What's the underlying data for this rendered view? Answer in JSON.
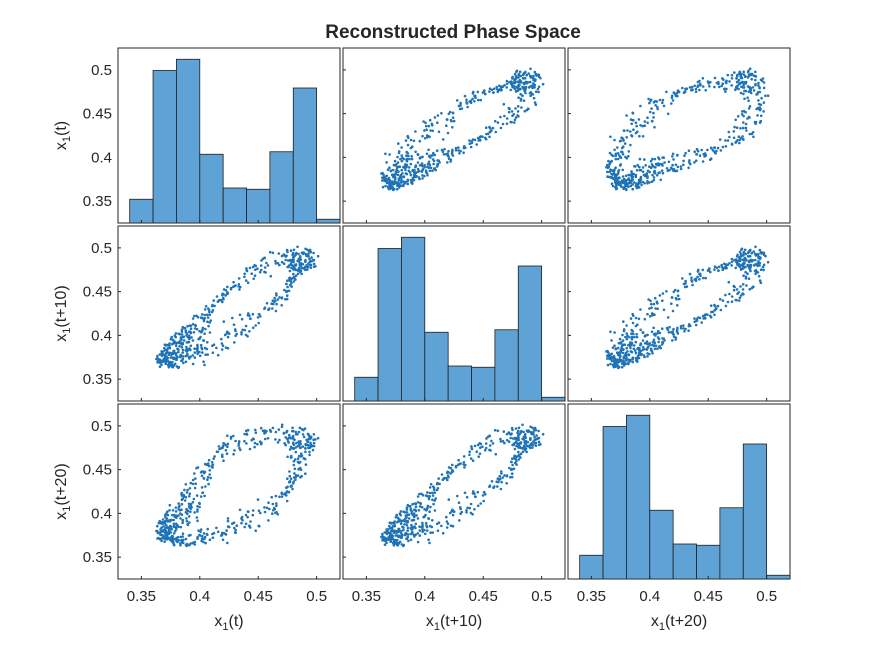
{
  "chart_data": {
    "type": "scatter-matrix",
    "title": "Reconstructed Phase Space",
    "variables": [
      {
        "base": "x",
        "sub": "1",
        "arg": "(t)"
      },
      {
        "base": "x",
        "sub": "1",
        "arg": "(t+10)"
      },
      {
        "base": "x",
        "sub": "1",
        "arg": "(t+20)"
      }
    ],
    "xlim": [
      0.33,
      0.52
    ],
    "ylim": [
      0.325,
      0.525
    ],
    "x_ticks": [
      "0.35",
      "0.4",
      "0.45",
      "0.5"
    ],
    "y_ticks": [
      "0.35",
      "0.4",
      "0.45",
      "0.5"
    ],
    "grid": false,
    "bar_color": "#5fa2d5",
    "marker_color": "#1f73b6",
    "histogram": {
      "bin_edges": [
        0.34,
        0.36,
        0.38,
        0.4,
        0.42,
        0.44,
        0.46,
        0.48,
        0.5,
        0.52
      ],
      "diagonal": [
        {
          "variable": "x1(t)",
          "counts": [
            19,
            122,
            131,
            55,
            28,
            27,
            57,
            108,
            3
          ]
        },
        {
          "variable": "x1(t+10)",
          "counts": [
            19,
            122,
            131,
            55,
            28,
            27,
            57,
            108,
            3
          ]
        },
        {
          "variable": "x1(t+20)",
          "counts": [
            19,
            122,
            131,
            55,
            28,
            27,
            57,
            108,
            3
          ]
        }
      ],
      "count_max": 140
    },
    "scatter_panels": [
      {
        "row": 1,
        "col": 2,
        "x": "x1(t+10)",
        "y": "x1(t)"
      },
      {
        "row": 1,
        "col": 3,
        "x": "x1(t+20)",
        "y": "x1(t)"
      },
      {
        "row": 2,
        "col": 1,
        "x": "x1(t)",
        "y": "x1(t+10)"
      },
      {
        "row": 2,
        "col": 3,
        "x": "x1(t+20)",
        "y": "x1(t+10)"
      },
      {
        "row": 3,
        "col": 1,
        "x": "x1(t)",
        "y": "x1(t+20)"
      },
      {
        "row": 3,
        "col": 2,
        "x": "x1(t+10)",
        "y": "x1(t+20)"
      }
    ],
    "attractor_loop": {
      "description_values": "x1 trajectory keypoints (data units) traced repeatedly with lag",
      "path": [
        [
          0.365,
          0.362
        ],
        [
          0.372,
          0.378
        ],
        [
          0.38,
          0.395
        ],
        [
          0.385,
          0.41
        ],
        [
          0.39,
          0.43
        ],
        [
          0.395,
          0.455
        ],
        [
          0.405,
          0.475
        ],
        [
          0.42,
          0.487
        ],
        [
          0.445,
          0.49
        ],
        [
          0.47,
          0.488
        ],
        [
          0.485,
          0.485
        ],
        [
          0.49,
          0.47
        ],
        [
          0.488,
          0.44
        ],
        [
          0.485,
          0.41
        ],
        [
          0.48,
          0.39
        ],
        [
          0.465,
          0.382
        ],
        [
          0.44,
          0.38
        ],
        [
          0.415,
          0.381
        ],
        [
          0.395,
          0.383
        ],
        [
          0.38,
          0.378
        ],
        [
          0.372,
          0.372
        ],
        [
          0.365,
          0.362
        ]
      ],
      "point_count": 560
    }
  }
}
